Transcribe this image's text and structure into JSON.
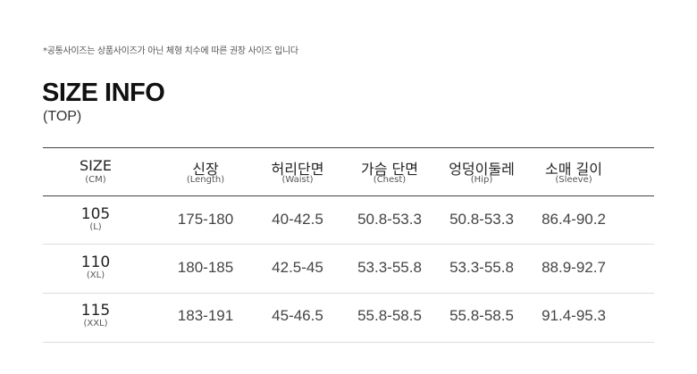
{
  "notice": "*공통사이즈는 상품사이즈가 아닌 체형 치수에 따른 권장 사이즈 입니다",
  "title": "SIZE INFO",
  "subtitle": "(TOP)",
  "table": {
    "headers": [
      {
        "label": "SIZE",
        "sub": "(CM)"
      },
      {
        "label": "신장",
        "sub": "(Length)"
      },
      {
        "label": "허리단면",
        "sub": "(Waist)"
      },
      {
        "label": "가슴 단면",
        "sub": "(Chest)"
      },
      {
        "label": "엉덩이둘레",
        "sub": "(Hip)"
      },
      {
        "label": "소매 길이",
        "sub": "(Sleeve)"
      }
    ],
    "rows": [
      {
        "size": "105",
        "size_sub": "(L)",
        "values": [
          "175-180",
          "40-42.5",
          "50.8-53.3",
          "50.8-53.3",
          "86.4-90.2"
        ]
      },
      {
        "size": "110",
        "size_sub": "(XL)",
        "values": [
          "180-185",
          "42.5-45",
          "53.3-55.8",
          "53.3-55.8",
          "88.9-92.7"
        ]
      },
      {
        "size": "115",
        "size_sub": "(XXL)",
        "values": [
          "183-191",
          "45-46.5",
          "55.8-58.5",
          "55.8-58.5",
          "91.4-95.3"
        ]
      }
    ]
  }
}
